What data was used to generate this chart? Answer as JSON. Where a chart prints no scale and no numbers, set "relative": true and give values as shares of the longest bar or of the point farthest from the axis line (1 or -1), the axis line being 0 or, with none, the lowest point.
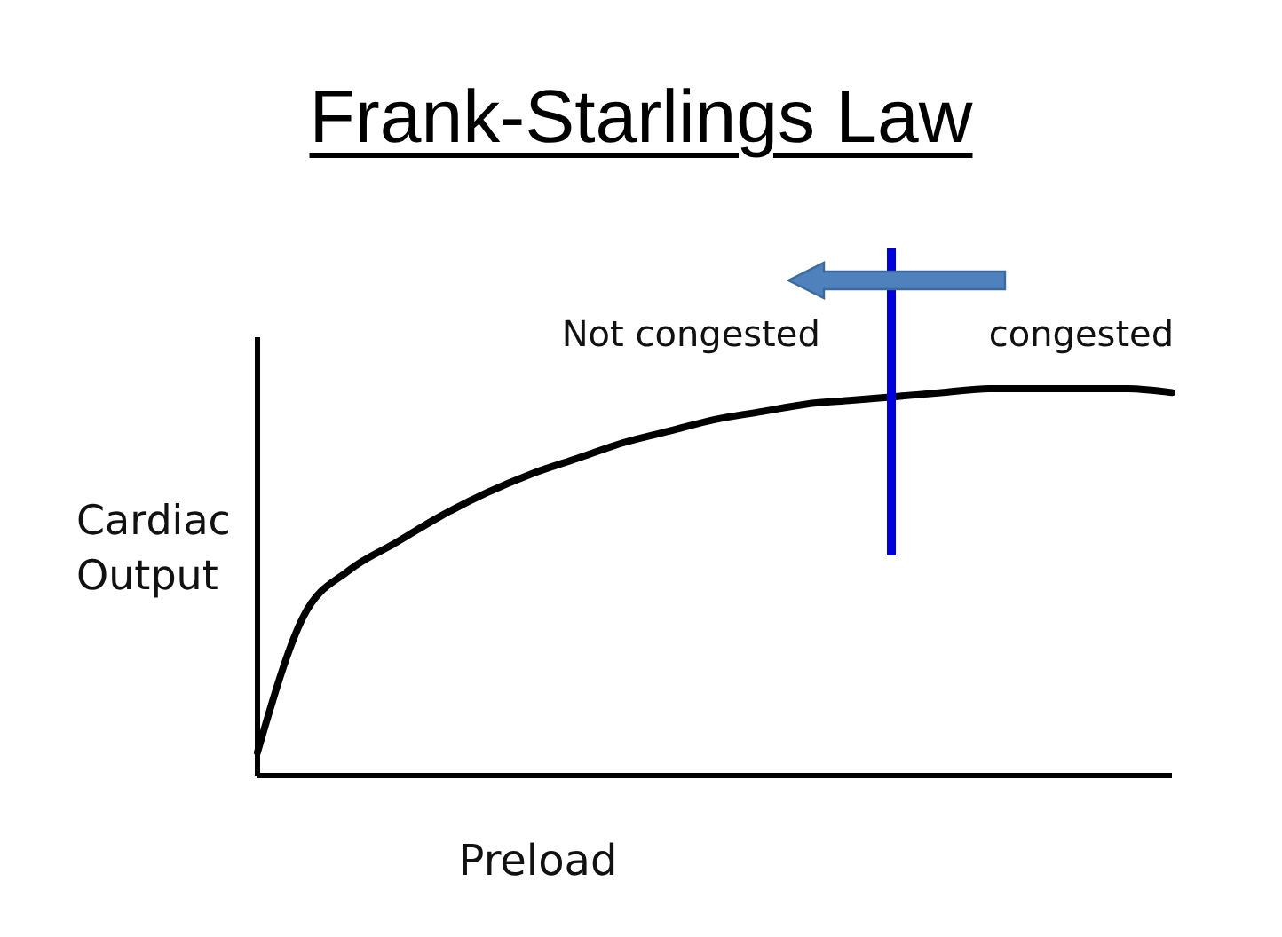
{
  "chart_data": {
    "type": "line",
    "title": "Frank-Starlings Law",
    "xlabel": "Preload",
    "ylabel": "Cardiac Output",
    "annotations": [
      "Not congested",
      "congested"
    ],
    "categories": [
      null,
      null,
      null,
      null,
      null,
      null,
      null,
      null,
      null,
      null,
      null,
      null,
      null,
      null,
      null,
      null,
      null,
      null,
      null,
      null,
      null
    ],
    "values": [
      0.06,
      0.41,
      0.53,
      0.6,
      0.67,
      0.73,
      0.78,
      0.82,
      0.86,
      0.89,
      0.92,
      0.94,
      0.96,
      0.97,
      0.98,
      0.99,
      1,
      1,
      1,
      1,
      0.99
    ],
    "color": "#000000",
    "relative": true
  }
}
